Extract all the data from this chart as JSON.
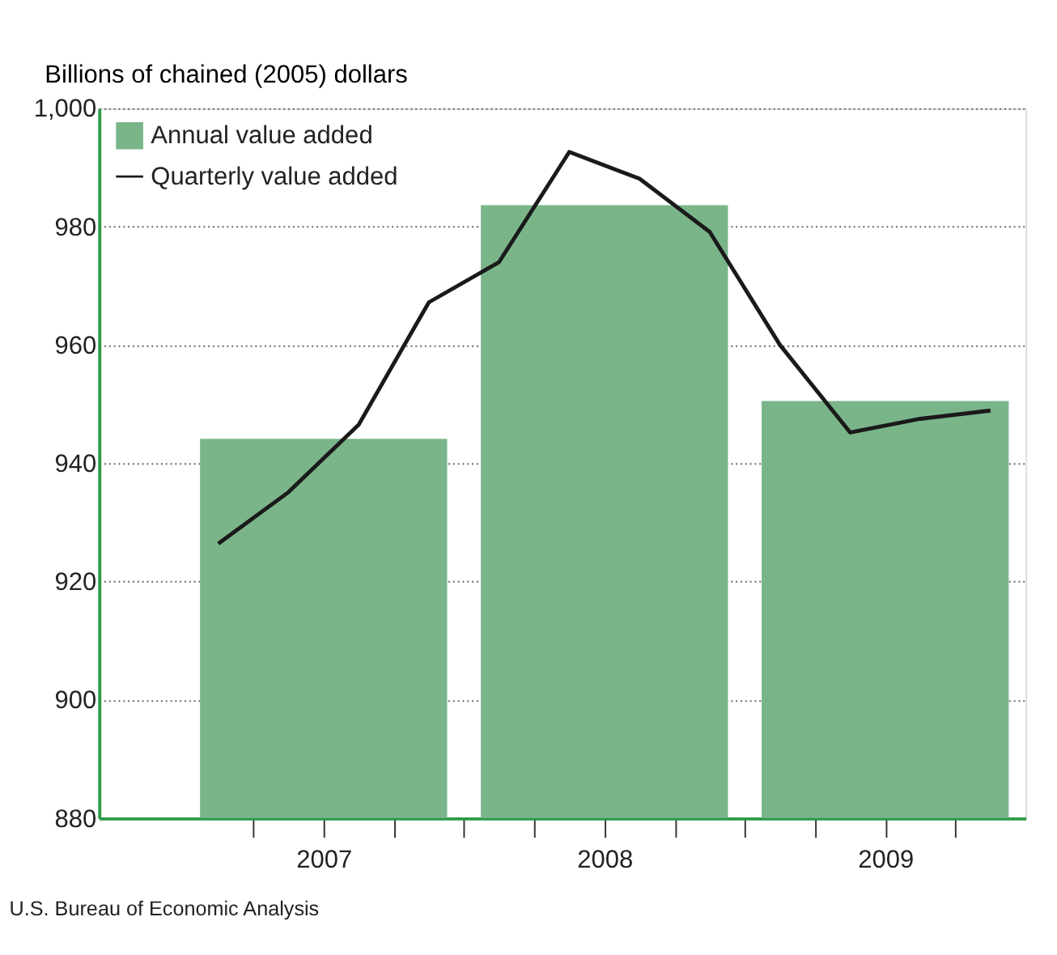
{
  "chart_data": {
    "type": "bar",
    "ylabel": "Billions of chained (2005) dollars",
    "x": [
      2007.5,
      2008.5,
      2009.5
    ],
    "xlim": [
      2006.7,
      2010.0
    ],
    "xticks": [
      {
        "value": 2007.25,
        "label": null
      },
      {
        "value": 2007.5,
        "label": "2007"
      },
      {
        "value": 2007.75,
        "label": null
      },
      {
        "value": 2008.0,
        "label": null
      },
      {
        "value": 2008.25,
        "label": null
      },
      {
        "value": 2008.5,
        "label": "2008"
      },
      {
        "value": 2008.75,
        "label": null
      },
      {
        "value": 2009.0,
        "label": null
      },
      {
        "value": 2009.25,
        "label": null
      },
      {
        "value": 2009.5,
        "label": "2009"
      },
      {
        "value": 2009.75,
        "label": null
      }
    ],
    "ylim": [
      880,
      1000
    ],
    "yticks": [
      880,
      900,
      920,
      940,
      960,
      980,
      {
        "value": 1000,
        "label": "1,000"
      }
    ],
    "series": [
      {
        "name": "Annual value added",
        "color": "#7ab58a",
        "values": [
          944.1,
          983.6,
          950.5
        ]
      },
      {
        "name": "Quarterly value added",
        "type": "line",
        "color": "#1a1a1a",
        "x": [
          2007.125,
          2007.375,
          2007.625,
          2007.875,
          2008.125,
          2008.375,
          2008.625,
          2008.875,
          2009.125,
          2009.375,
          2009.625,
          2009.875
        ],
        "values": [
          926.4,
          935.1,
          946.5,
          967.2,
          974.0,
          992.6,
          988.1,
          979.1,
          960.0,
          945.2,
          947.5,
          948.9
        ]
      }
    ],
    "grid": "y",
    "legend": "top left",
    "annotations": [
      "U.S. Bureau of Economic Analysis"
    ]
  }
}
